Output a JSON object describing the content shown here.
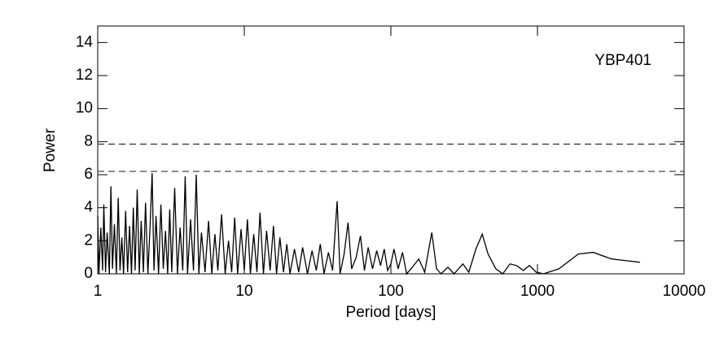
{
  "chart_data": {
    "type": "line",
    "xscale": "log",
    "xlabel": "Period [days]",
    "ylabel": "Power",
    "annotation": "YBP401",
    "xlim": [
      1,
      10000
    ],
    "xticks": [
      1,
      10,
      100,
      1000,
      10000
    ],
    "ylim": [
      0,
      15
    ],
    "yticks": [
      0,
      2,
      4,
      6,
      8,
      10,
      12,
      14
    ],
    "reference_lines": [
      7.85,
      6.2
    ],
    "series": [
      {
        "color": "#000000",
        "x": [
          1.0,
          1.02,
          1.05,
          1.08,
          1.1,
          1.13,
          1.16,
          1.2,
          1.23,
          1.26,
          1.3,
          1.34,
          1.38,
          1.42,
          1.46,
          1.5,
          1.55,
          1.6,
          1.65,
          1.7,
          1.75,
          1.8,
          1.86,
          1.92,
          1.98,
          2.05,
          2.12,
          2.2,
          2.28,
          2.35,
          2.42,
          2.5,
          2.6,
          2.7,
          2.8,
          2.9,
          3.0,
          3.1,
          3.2,
          3.35,
          3.5,
          3.65,
          3.8,
          3.95,
          4.1,
          4.3,
          4.5,
          4.7,
          4.9,
          5.1,
          5.4,
          5.7,
          6.0,
          6.3,
          6.6,
          7.0,
          7.4,
          7.8,
          8.2,
          8.6,
          9.0,
          9.5,
          10,
          10.5,
          11,
          11.6,
          12.2,
          12.8,
          13.5,
          14.2,
          15,
          15.8,
          16.6,
          17.5,
          18.5,
          19.5,
          20.5,
          22,
          23.5,
          25,
          27,
          29,
          31,
          33,
          35,
          37.5,
          40,
          43,
          45,
          48,
          51,
          54,
          58,
          62,
          66,
          70,
          75,
          80,
          85,
          90,
          95,
          100,
          105,
          112,
          120,
          128,
          140,
          155,
          170,
          190,
          205,
          220,
          245,
          270,
          310,
          340,
          380,
          420,
          460,
          520,
          580,
          650,
          720,
          800,
          880,
          980,
          1100,
          1400,
          1900,
          2400,
          3200,
          5000
        ],
        "values": [
          3.5,
          0,
          2.8,
          0.2,
          4.2,
          0.1,
          2.5,
          0,
          5.3,
          0.3,
          3.0,
          0,
          4.6,
          0.2,
          2.2,
          0,
          3.8,
          0.1,
          2.9,
          0,
          4.0,
          0.2,
          5.1,
          0,
          3.2,
          0.1,
          4.3,
          0,
          3.0,
          6.1,
          0.2,
          3.5,
          0,
          4.2,
          0.3,
          2.6,
          0,
          3.9,
          0.1,
          5.2,
          0,
          2.8,
          0.2,
          5.9,
          0,
          3.3,
          0.2,
          6.0,
          0,
          2.5,
          0.1,
          3.2,
          0,
          2.4,
          0.2,
          3.6,
          0,
          2.0,
          0.1,
          3.4,
          0,
          2.7,
          0.2,
          3.3,
          0,
          2.4,
          0.1,
          3.7,
          0,
          2.6,
          0.2,
          2.9,
          0,
          2.2,
          0.1,
          1.8,
          0,
          1.5,
          0.1,
          1.6,
          0,
          1.4,
          0.2,
          1.8,
          0,
          1.3,
          0.2,
          4.4,
          0,
          1.2,
          3.1,
          0.3,
          1.0,
          2.3,
          0.2,
          1.6,
          0.3,
          1.4,
          0.5,
          1.5,
          0.2,
          0.6,
          1.5,
          0.3,
          1.3,
          0,
          0.4,
          0.9,
          0.1,
          2.5,
          0.3,
          0,
          0.4,
          0,
          0.6,
          0.1,
          1.5,
          2.4,
          1.2,
          0.3,
          0,
          0.6,
          0.5,
          0.2,
          0.5,
          0.1,
          0,
          0.3,
          1.2,
          1.3,
          0.9,
          0.7
        ]
      }
    ]
  }
}
